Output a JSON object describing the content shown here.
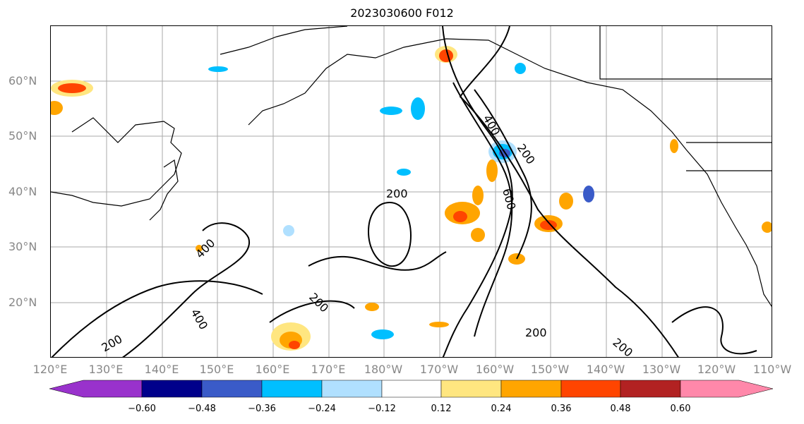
{
  "title": "2023030600 F012",
  "map": {
    "lat_labels": [
      "60°N",
      "50°N",
      "40°N",
      "30°N",
      "20°N"
    ],
    "lon_labels": [
      "120°E",
      "130°E",
      "140°E",
      "150°E",
      "160°E",
      "170°E",
      "180°W",
      "170°W",
      "160°W",
      "150°W",
      "140°W",
      "130°W",
      "120°W",
      "110°W"
    ],
    "contour_labels": [
      "200",
      "400",
      "600",
      "200",
      "400",
      "200",
      "400",
      "200",
      "200",
      "200"
    ],
    "coastline_color": "#000000",
    "grid_color": "#aaaaaa",
    "label_color": "#888888"
  },
  "colorbar": {
    "ticks": [
      "−0.60",
      "−0.48",
      "−0.36",
      "−0.24",
      "−0.12",
      "0.12",
      "0.24",
      "0.36",
      "0.48",
      "0.60"
    ],
    "colors": [
      "#9932cc",
      "#00008b",
      "#3a5bc8",
      "#00bfff",
      "#b0e0ff",
      "#ffffff",
      "#ffe680",
      "#ffa500",
      "#ff4500",
      "#b22222",
      "#ff88aa"
    ]
  }
}
